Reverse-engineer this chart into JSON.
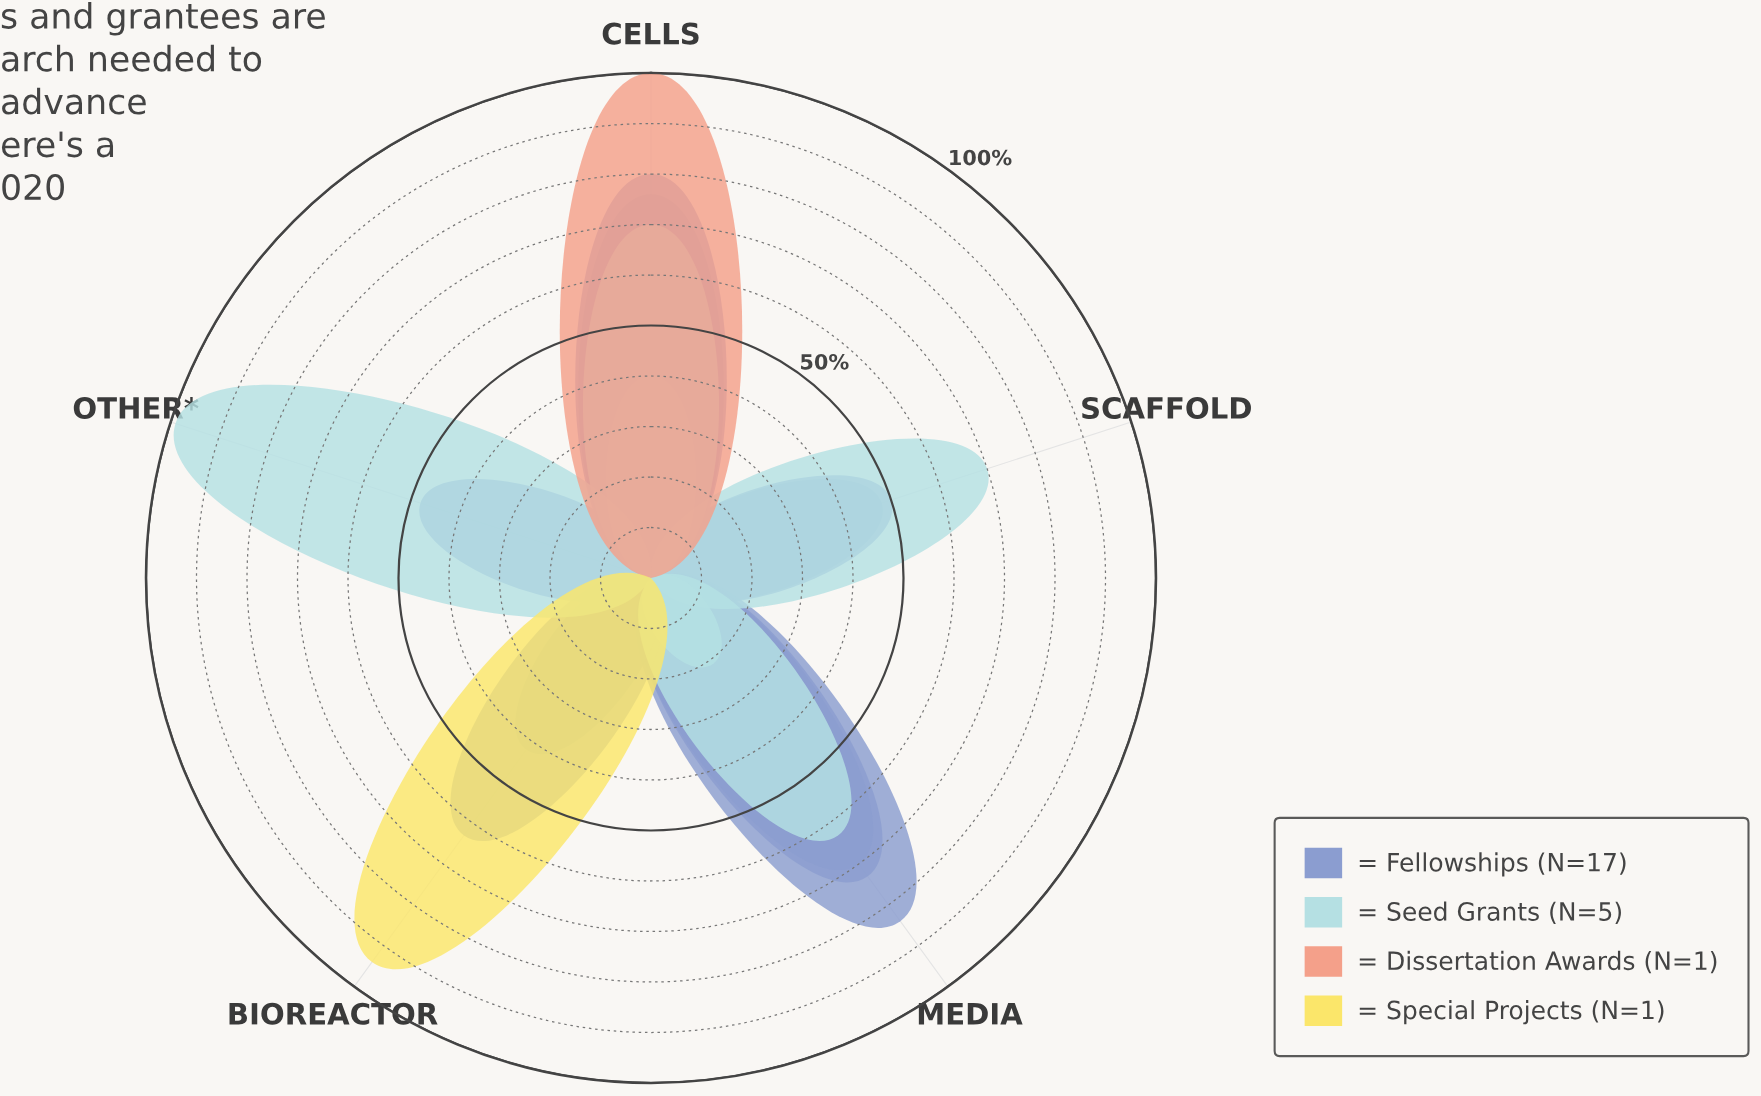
{
  "chart_data": {
    "type": "radar",
    "title": "s and grantees are\narch needed to\nadvance\nere's a\n020",
    "categories": [
      "CELLS",
      "SCAFFOLD",
      "MEDIA",
      "BIOREACTOR",
      "OTHER*"
    ],
    "ylim": [
      0,
      100
    ],
    "yticks": [
      {
        "value": 50,
        "label": "50%"
      },
      {
        "value": 100,
        "label": "100%"
      }
    ],
    "grid": true,
    "legend": "bottom right",
    "series": [
      {
        "name": "= Fellowships (N=17)",
        "color": "#8b9dd0",
        "values": [
          80,
          0,
          0,
          0,
          0
        ]
      },
      {
        "color": "#8b9dd0",
        "values": [
          76,
          0,
          0,
          0,
          0
        ]
      },
      {
        "color": "#8b9dd0",
        "values": [
          0,
          50,
          0,
          0,
          0
        ]
      },
      {
        "color": "#8b9dd0",
        "values": [
          0,
          48,
          0,
          0,
          0
        ]
      },
      {
        "color": "#8b9dd0",
        "values": [
          0,
          0,
          84,
          0,
          0
        ]
      },
      {
        "color": "#8b9dd0",
        "values": [
          0,
          0,
          73,
          0,
          0
        ]
      },
      {
        "color": "#8b9dd0",
        "values": [
          0,
          0,
          70,
          0,
          0
        ]
      },
      {
        "color": "#8b9dd0",
        "values": [
          0,
          0,
          0,
          63,
          0
        ]
      },
      {
        "color": "#8b9dd0",
        "values": [
          0,
          0,
          0,
          42,
          0
        ]
      },
      {
        "color": "#8b9dd0",
        "values": [
          0,
          0,
          0,
          0,
          48
        ]
      },
      {
        "name": "= Seed Grants (N=5)",
        "color": "#b5e0e3",
        "values": [
          70,
          0,
          0,
          0,
          0
        ]
      },
      {
        "color": "#b5e0e3",
        "values": [
          40,
          0,
          0,
          0,
          0
        ]
      },
      {
        "color": "#b5e0e3",
        "values": [
          0,
          70,
          0,
          0,
          0
        ]
      },
      {
        "color": "#b5e0e3",
        "values": [
          0,
          0,
          63,
          0,
          0
        ]
      },
      {
        "color": "#b5e0e3",
        "values": [
          0,
          0,
          21,
          0,
          0
        ]
      },
      {
        "color": "#b5e0e3",
        "values": [
          0,
          0,
          0,
          0,
          99
        ]
      },
      {
        "name": "= Dissertation Awards (N=1)",
        "color": "#f4a08a",
        "values": [
          100,
          0,
          0,
          0,
          0
        ]
      },
      {
        "name": "= Special Projects (N=1)",
        "color": "#fbe66a",
        "values": [
          0,
          0,
          0,
          94,
          0
        ]
      }
    ]
  }
}
